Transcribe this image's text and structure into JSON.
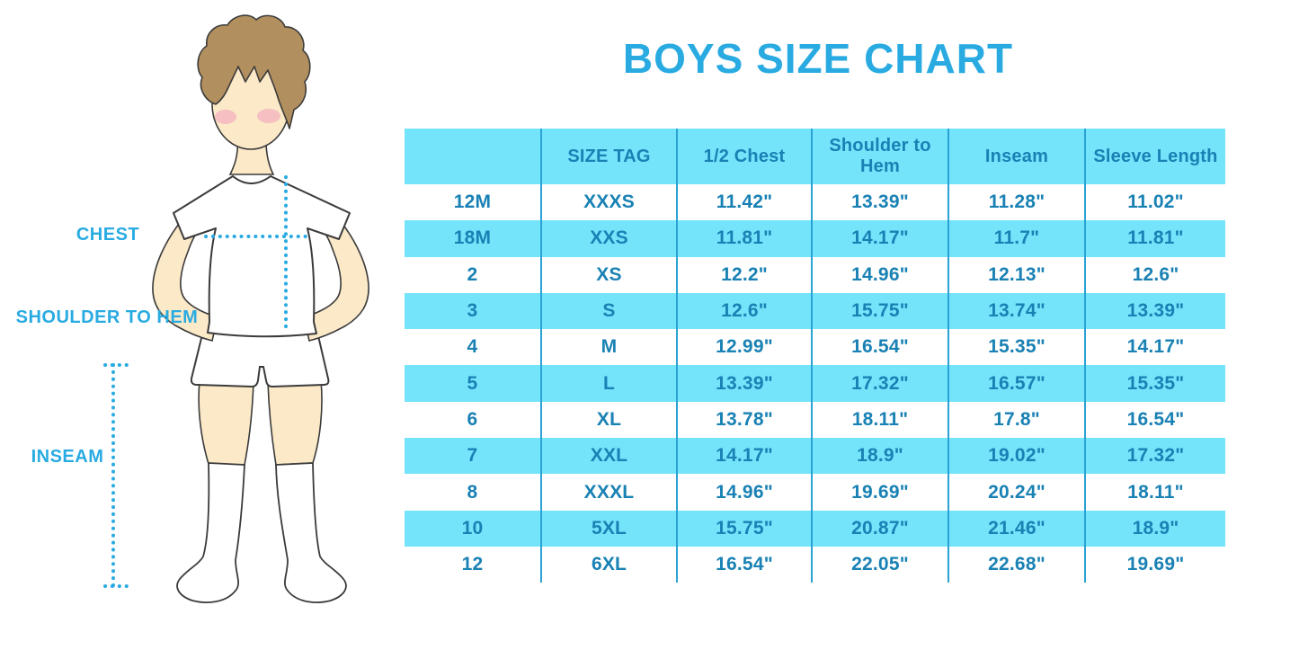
{
  "page_title": "BOYS SIZE CHART",
  "colors": {
    "accent_blue": "#29abe2",
    "table_text_blue": "#1981b4",
    "stripe_cyan": "#74e4fb",
    "divider_blue": "#2aa2d3",
    "skin": "#fbe9c8",
    "hair_brown": "#b28f5e",
    "blush_pink": "#f2a9be",
    "outline_dark": "#3b3b3b"
  },
  "figure": {
    "chest_label": "CHEST",
    "shoulder_to_hem_label": "SHOULDER TO HEM",
    "inseam_label": "INSEAM"
  },
  "chart_data": {
    "type": "table",
    "title": "BOYS SIZE CHART",
    "columns": [
      "",
      "SIZE TAG",
      "1/2 Chest",
      "Shoulder to Hem",
      "Inseam",
      "Sleeve Length"
    ],
    "rows": [
      [
        "12M",
        "XXXS",
        "11.42\"",
        "13.39\"",
        "11.28\"",
        "11.02\""
      ],
      [
        "18M",
        "XXS",
        "11.81\"",
        "14.17\"",
        "11.7\"",
        "11.81\""
      ],
      [
        "2",
        "XS",
        "12.2\"",
        "14.96\"",
        "12.13\"",
        "12.6\""
      ],
      [
        "3",
        "S",
        "12.6\"",
        "15.75\"",
        "13.74\"",
        "13.39\""
      ],
      [
        "4",
        "M",
        "12.99\"",
        "16.54\"",
        "15.35\"",
        "14.17\""
      ],
      [
        "5",
        "L",
        "13.39\"",
        "17.32\"",
        "16.57\"",
        "15.35\""
      ],
      [
        "6",
        "XL",
        "13.78\"",
        "18.11\"",
        "17.8\"",
        "16.54\""
      ],
      [
        "7",
        "XXL",
        "14.17\"",
        "18.9\"",
        "19.02\"",
        "17.32\""
      ],
      [
        "8",
        "XXXL",
        "14.96\"",
        "19.69\"",
        "20.24\"",
        "18.11\""
      ],
      [
        "10",
        "5XL",
        "15.75\"",
        "20.87\"",
        "21.46\"",
        "18.9\""
      ],
      [
        "12",
        "6XL",
        "16.54\"",
        "22.05\"",
        "22.68\"",
        "19.69\""
      ]
    ]
  }
}
